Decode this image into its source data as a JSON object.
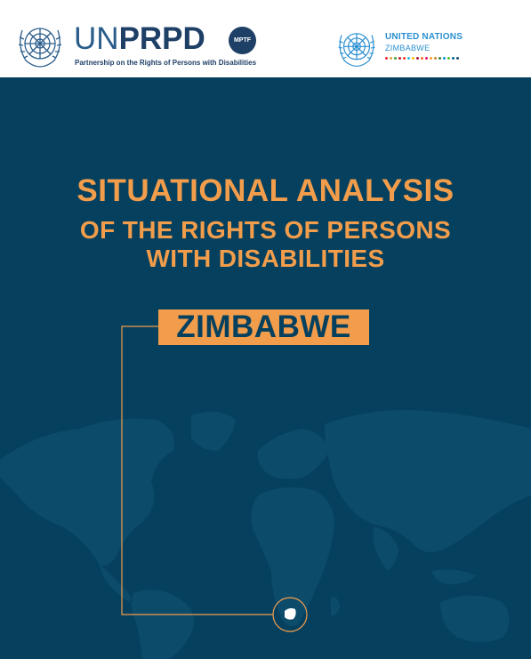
{
  "header": {
    "unprpd_logo": {
      "un_text": "UN",
      "prpd_text": "PRPD",
      "badge": "MPTF",
      "tagline": "Partnership on the Rights of Persons with Disabilities"
    },
    "un_country_logo": {
      "name": "UNITED NATIONS",
      "country": "ZIMBABWE",
      "sdg_colors": [
        "#e5243b",
        "#dda63a",
        "#4c9f38",
        "#c5192d",
        "#ff3a21",
        "#26bde2",
        "#fcc30b",
        "#a21942",
        "#fd6925",
        "#dd1367",
        "#fd9d24",
        "#bf8b2e",
        "#3f7e44",
        "#0a97d9",
        "#56c02b",
        "#00689d",
        "#19486a"
      ]
    }
  },
  "cover": {
    "title_line1": "SITUATIONAL ANALYSIS",
    "title_line2": "OF THE RIGHTS OF PERSONS",
    "title_line3": "WITH DISABILITIES",
    "country": "ZIMBABWE"
  },
  "colors": {
    "background": "#05405f",
    "accent": "#f19d4b",
    "map": "#0d4b6b"
  }
}
